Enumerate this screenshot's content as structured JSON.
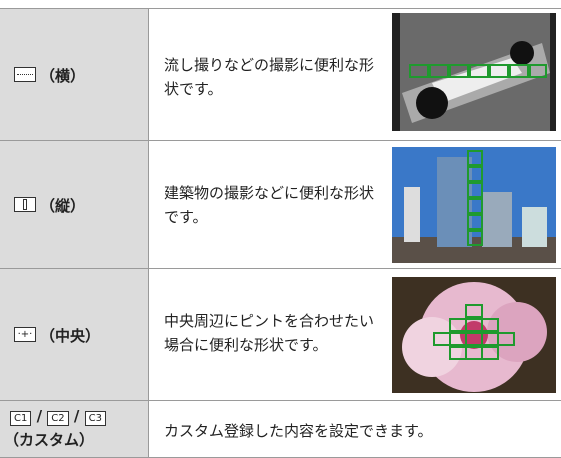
{
  "table": {
    "rows": [
      {
        "label": "（横）",
        "description": "流し撮りなどの撮影に便利な形状です。"
      },
      {
        "label": "（縦）",
        "description": "建築物の撮影などに便利な形状です。"
      },
      {
        "label": "（中央）",
        "description": "中央周辺にピントを合わせたい場合に便利な形状です。"
      },
      {
        "icons": [
          "C1",
          "C2",
          "C3"
        ],
        "label": "（カスタム）",
        "description": "カスタム登録した内容を設定できます。"
      }
    ]
  }
}
